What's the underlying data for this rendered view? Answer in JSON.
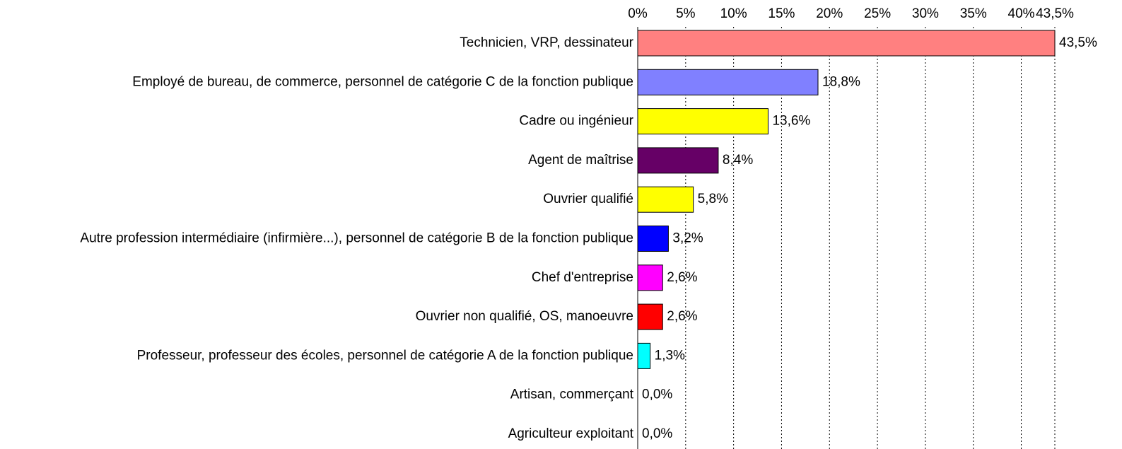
{
  "chart_data": {
    "type": "bar",
    "orientation": "horizontal",
    "categories": [
      "Technicien, VRP, dessinateur",
      "Employé de bureau, de commerce, personnel de catégorie C de la fonction publique",
      "Cadre ou ingénieur",
      "Agent de maîtrise",
      "Ouvrier qualifié",
      "Autre profession intermédiaire (infirmière...), personnel de catégorie B de la fonction publique",
      "Chef d'entreprise",
      "Ouvrier non qualifié, OS, manoeuvre",
      "Professeur, professeur des écoles, personnel de catégorie A de la fonction publique",
      "Artisan, commerçant",
      "Agriculteur exploitant"
    ],
    "values": [
      43.5,
      18.8,
      13.6,
      8.4,
      5.8,
      3.2,
      2.6,
      2.6,
      1.3,
      0.0,
      0.0
    ],
    "value_labels": [
      "43,5%",
      "18,8%",
      "13,6%",
      "8,4%",
      "5,8%",
      "3,2%",
      "2,6%",
      "2,6%",
      "1,3%",
      "0,0%",
      "0,0%"
    ],
    "colors": [
      "#ff8080",
      "#8080ff",
      "#ffff00",
      "#660066",
      "#ffff00",
      "#0000ff",
      "#ff00ff",
      "#ff0000",
      "#00ffff",
      null,
      null
    ],
    "xlim": [
      0,
      43.5
    ],
    "xticks": [
      {
        "value": 0,
        "label": "0%"
      },
      {
        "value": 5,
        "label": "5%"
      },
      {
        "value": 10,
        "label": "10%"
      },
      {
        "value": 15,
        "label": "15%"
      },
      {
        "value": 20,
        "label": "20%"
      },
      {
        "value": 25,
        "label": "25%"
      },
      {
        "value": 30,
        "label": "30%"
      },
      {
        "value": 35,
        "label": "35%"
      },
      {
        "value": 40,
        "label": "40%"
      },
      {
        "value": 43.5,
        "label": "43,5%"
      }
    ],
    "grid": true
  }
}
